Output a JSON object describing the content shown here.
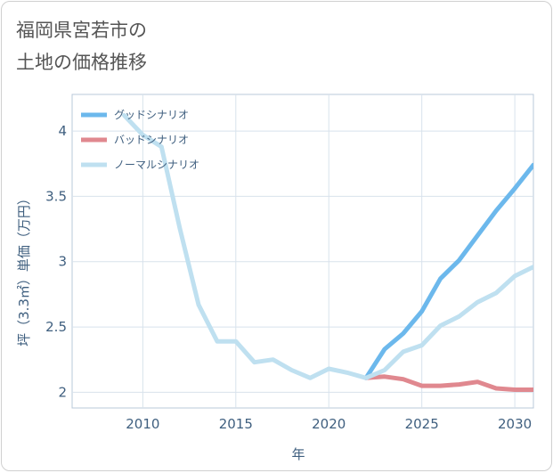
{
  "chart_data": {
    "type": "line",
    "title": [
      "福岡県宮若市の",
      "土地の価格推移"
    ],
    "xlabel": "年",
    "ylabel": "坪（3.3㎡）単価（万円）",
    "xlim": [
      2006.2,
      2031
    ],
    "ylim": [
      1.88,
      4.28
    ],
    "x_ticks": [
      2010,
      2015,
      2020,
      2025,
      2030
    ],
    "y_ticks": [
      2,
      2.5,
      3,
      3.5,
      4
    ],
    "y_tick_labels": [
      "2",
      "2.5",
      "3",
      "3.5",
      "4"
    ],
    "legend_position": "top-left",
    "series": [
      {
        "name": "グッドシナリオ",
        "color": "#6cb8ec",
        "x": [
          2022,
          2023,
          2024,
          2025,
          2026,
          2027,
          2028,
          2029,
          2030,
          2031
        ],
        "values": [
          2.11,
          2.33,
          2.45,
          2.62,
          2.87,
          3.01,
          3.2,
          3.39,
          3.56,
          3.74
        ]
      },
      {
        "name": "バッドシナリオ",
        "color": "#e0888f",
        "x": [
          2022,
          2023,
          2024,
          2025,
          2026,
          2027,
          2028,
          2029,
          2030,
          2031
        ],
        "values": [
          2.11,
          2.12,
          2.1,
          2.05,
          2.05,
          2.06,
          2.08,
          2.03,
          2.02,
          2.02
        ]
      },
      {
        "name": "ノーマルシナリオ",
        "color": "#bfe0f0",
        "x": [
          2009,
          2010,
          2011,
          2012,
          2013,
          2014,
          2015,
          2016,
          2017,
          2018,
          2019,
          2020,
          2021,
          2022,
          2023,
          2024,
          2025,
          2026,
          2027,
          2028,
          2029,
          2030,
          2031
        ],
        "values": [
          4.12,
          3.97,
          3.88,
          3.25,
          2.67,
          2.39,
          2.39,
          2.23,
          2.25,
          2.17,
          2.11,
          2.18,
          2.15,
          2.11,
          2.17,
          2.31,
          2.36,
          2.51,
          2.58,
          2.69,
          2.76,
          2.89,
          2.96
        ]
      }
    ]
  }
}
